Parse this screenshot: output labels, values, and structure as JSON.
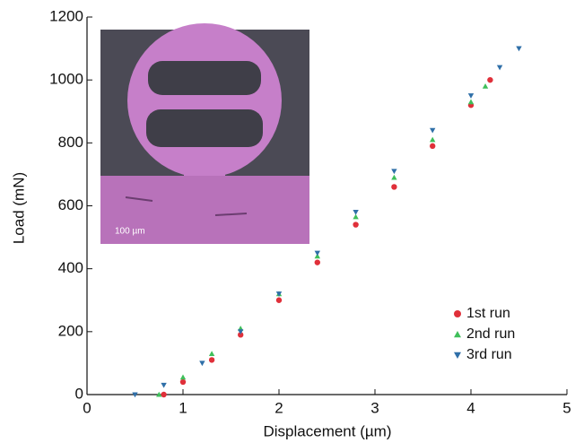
{
  "chart_data": {
    "type": "scatter",
    "xlabel": "Displacement (µm)",
    "ylabel": "Load (mN)",
    "xlim": [
      0,
      5
    ],
    "xticks": [
      0,
      1,
      2,
      3,
      4,
      5
    ],
    "ylim": [
      0,
      1200
    ],
    "yticks": [
      0,
      200,
      400,
      600,
      800,
      1000,
      1200
    ],
    "legend": "lower right",
    "inset_scale_label": "100 µm",
    "series": [
      {
        "name": "1st run",
        "color": "#e0303a",
        "marker": "circle",
        "x": [
          0.8,
          1.0,
          1.3,
          1.6,
          2.0,
          2.4,
          2.8,
          3.2,
          3.6,
          4.0,
          4.2
        ],
        "values": [
          0,
          40,
          110,
          190,
          300,
          420,
          540,
          660,
          790,
          920,
          1000
        ]
      },
      {
        "name": "2nd run",
        "color": "#3fbf5a",
        "marker": "triangle",
        "x": [
          0.75,
          1.0,
          1.3,
          1.6,
          2.0,
          2.4,
          2.8,
          3.2,
          3.6,
          4.0,
          4.15
        ],
        "values": [
          0,
          55,
          130,
          210,
          320,
          440,
          565,
          690,
          810,
          930,
          980
        ]
      },
      {
        "name": "3rd run",
        "color": "#2f6fa8",
        "marker": "triangle-down",
        "x": [
          0.5,
          0.8,
          1.2,
          1.6,
          2.0,
          2.4,
          2.8,
          3.2,
          3.6,
          4.0,
          4.3,
          4.5
        ],
        "values": [
          0,
          30,
          100,
          200,
          320,
          450,
          580,
          710,
          840,
          950,
          1040,
          1100
        ]
      }
    ]
  }
}
